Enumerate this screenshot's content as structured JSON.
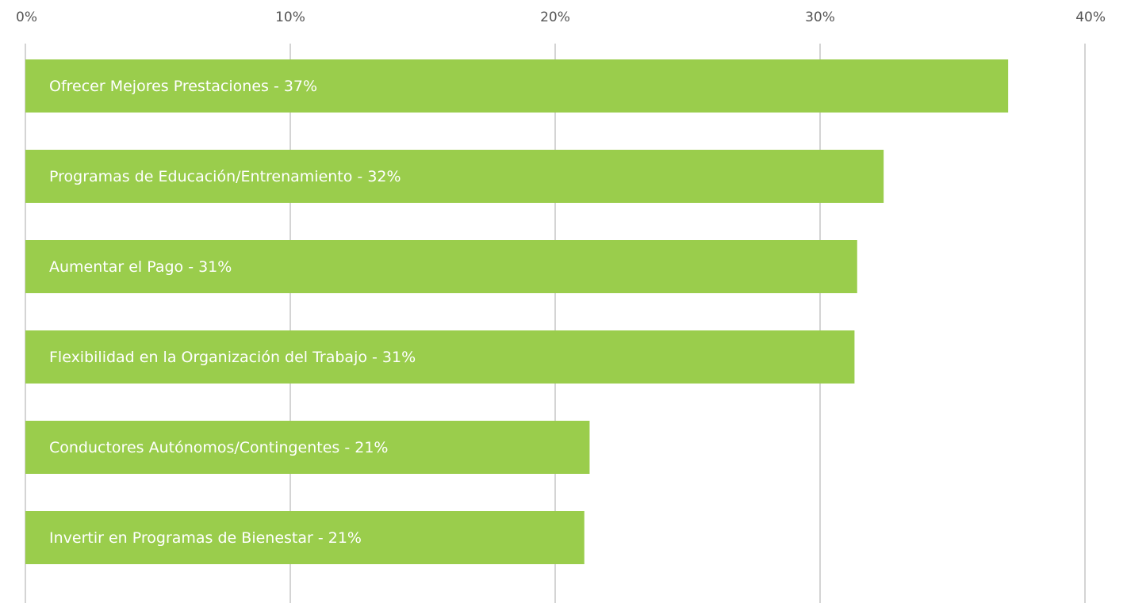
{
  "chart_data": {
    "type": "bar",
    "orientation": "horizontal",
    "categories": [
      "Ofrecer Mejores Prestaciones - 37%",
      "Programas de Educación/Entrenamiento - 32%",
      "Aumentar el Pago - 31%",
      "Flexibilidad en la Organización del Trabajo - 31%",
      "Conductores Autónomos/Contingentes - 21%",
      "Invertir en Programas de Bienestar - 21%"
    ],
    "values": [
      37.1,
      32.4,
      31.4,
      31.3,
      21.3,
      21.1
    ],
    "color": "#9acd4c",
    "xlim": [
      0,
      40
    ],
    "xticks": [
      {
        "value": 0,
        "label": "0%"
      },
      {
        "value": 10,
        "label": "10%"
      },
      {
        "value": 20,
        "label": "20%"
      },
      {
        "value": 30,
        "label": "30%"
      },
      {
        "value": 40,
        "label": "40%"
      }
    ],
    "grid": true
  }
}
